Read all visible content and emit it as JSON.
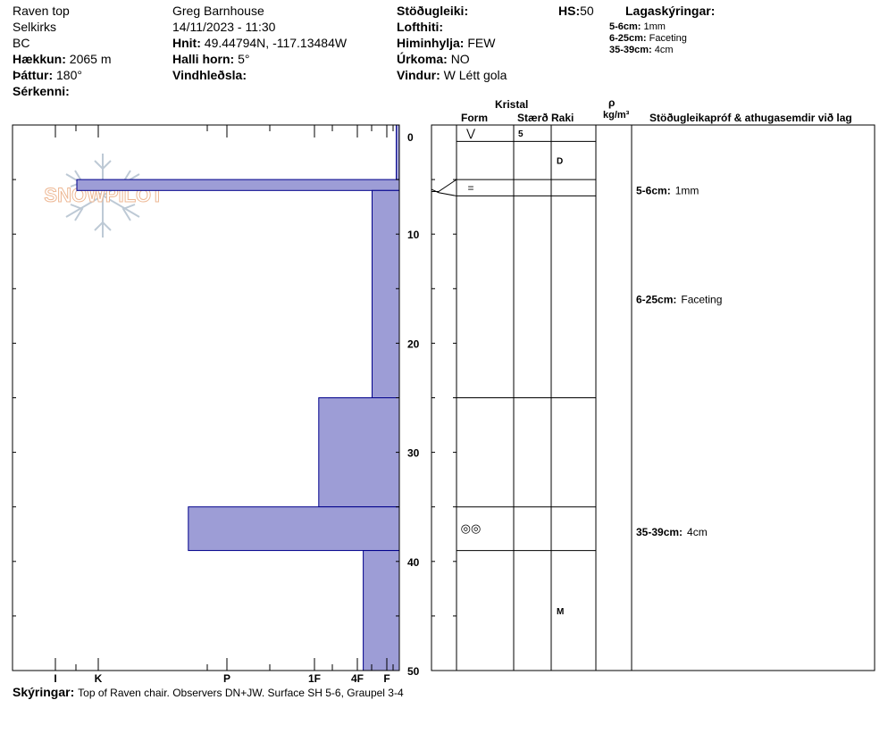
{
  "header": {
    "col1": {
      "location": "Raven top",
      "range": "Selkirks",
      "state": "BC",
      "elevation_label": "Hækkun:",
      "elevation": "2065 m",
      "aspect_label": "Þáttur:",
      "aspect": "180°",
      "features_label": "Sérkenni:"
    },
    "col2": {
      "observer": "Greg Barnhouse",
      "datetime": "14/11/2023 - 11:30",
      "coords_label": "Hnit:",
      "coords": "49.44794N, -117.13484W",
      "slope_label": "Halli horn:",
      "slope": "5°",
      "wind_loading_label": "Vindhleðsla:"
    },
    "col3": {
      "stability_label": "Stöðugleiki:",
      "air_temp_label": "Lofthiti:",
      "sky_label": "Himinhylja:",
      "sky": "FEW",
      "precip_label": "Úrkoma:",
      "precip": "NO",
      "wind_label": "Vindur:",
      "wind": "W Létt gola"
    },
    "hs_label": "HS:",
    "hs": "50",
    "layer_notes": {
      "title": "Lagaskýringar:",
      "items": [
        {
          "range": "5-6cm:",
          "text": "1mm"
        },
        {
          "range": "6-25cm:",
          "text": "Faceting"
        },
        {
          "range": "35-39cm:",
          "text": "4cm"
        }
      ]
    }
  },
  "table_headers": {
    "crystal": "Kristal",
    "form": "Form",
    "size": "Stærð",
    "moisture": "Raki",
    "density_symbol": "ρ",
    "density_unit": "kg/m³",
    "tests": "Stöðugleikapróf & athugasemdir við lag"
  },
  "footer": {
    "comments_label": "Skýringar:",
    "comments": "Top of Raven chair. Observers DN+JW. Surface SH 5-6, Graupel 3-4"
  },
  "logo_text": "SNOWPILOT",
  "colors": {
    "bar_fill": "#9d9dd6",
    "bar_stroke": "#00008b",
    "line": "#000000"
  },
  "chart_data": {
    "type": "bar",
    "orientation": "horizontal-from-right",
    "y_label": "depth (cm)",
    "y_ticks": [
      "0",
      "10",
      "20",
      "30",
      "40",
      "50"
    ],
    "ylim": [
      0,
      50
    ],
    "hardness_ticks": [
      {
        "label": "I",
        "value": 6
      },
      {
        "label": "K",
        "value": 5
      },
      {
        "label": "P",
        "value": 4
      },
      {
        "label": "1F",
        "value": 3
      },
      {
        "label": "4F",
        "value": 2
      },
      {
        "label": "F",
        "value": 1
      }
    ],
    "layers": [
      {
        "top": 0,
        "bottom": 5,
        "hardness": 0.25
      },
      {
        "top": 5,
        "bottom": 6,
        "hardness": 5.5
      },
      {
        "top": 6,
        "bottom": 25,
        "hardness": 1.5
      },
      {
        "top": 25,
        "bottom": 35,
        "hardness": 2.9
      },
      {
        "top": 35,
        "bottom": 39,
        "hardness": 4.3
      },
      {
        "top": 39,
        "bottom": 50,
        "hardness": 1.8
      }
    ],
    "crystal_boundaries": [
      0,
      1.5,
      5,
      6.5,
      25,
      35,
      39
    ],
    "crystal_rows": [
      {
        "top": 0,
        "bottom": 1.5,
        "form": "⋁",
        "size": "5",
        "moisture": ""
      },
      {
        "top": 1.5,
        "bottom": 5,
        "form": "",
        "size": "",
        "moisture": "D"
      },
      {
        "top": 5,
        "bottom": 6.5,
        "form": "=",
        "size": "",
        "moisture": ""
      },
      {
        "top": 6.5,
        "bottom": 25,
        "form": "",
        "size": "",
        "moisture": ""
      },
      {
        "top": 25,
        "bottom": 35,
        "form": "",
        "size": "",
        "moisture": ""
      },
      {
        "top": 35,
        "bottom": 39,
        "form": "◎◎",
        "size": "",
        "moisture": ""
      },
      {
        "top": 39,
        "bottom": 50,
        "form": "",
        "size": "",
        "moisture": "M"
      }
    ],
    "annotations": [
      {
        "depth": 6,
        "range": "5-6cm:",
        "text": "1mm"
      },
      {
        "depth": 16,
        "range": "6-25cm:",
        "text": "Faceting"
      },
      {
        "depth": 37.3,
        "range": "35-39cm:",
        "text": "4cm"
      }
    ]
  }
}
